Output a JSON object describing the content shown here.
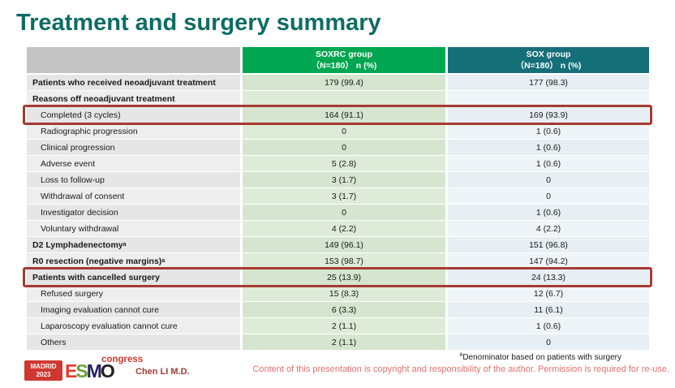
{
  "title": "Treatment and surgery summary",
  "colors": {
    "title_teal": "#0e6c63",
    "soxrc_green": "#00a651",
    "sox_teal": "#156f78",
    "highlight_red": "#a63a32",
    "logo_red": "#cf3830",
    "presenter_red": "#a53b32",
    "copyright_red": "#e2706e"
  },
  "table": {
    "columns": [
      {
        "label": "",
        "sublabel": ""
      },
      {
        "label": "SOXRC group",
        "sublabel": "（N=180） n (%)"
      },
      {
        "label": "SOX group",
        "sublabel": "（N=180） n (%)"
      }
    ],
    "rows": [
      {
        "label": "Patients who received neoadjuvant treatment",
        "bold": true,
        "indent": false,
        "soxrc": "179 (99.4)",
        "sox": "177 (98.3)",
        "highlight": false
      },
      {
        "label": "Reasons off neoadjuvant treatment",
        "bold": true,
        "indent": false,
        "soxrc": "",
        "sox": "",
        "highlight": false
      },
      {
        "label": "Completed (3 cycles)",
        "bold": false,
        "indent": true,
        "soxrc": "164 (91.1)",
        "sox": "169 (93.9)",
        "highlight": true
      },
      {
        "label": "Radiographic progression",
        "bold": false,
        "indent": true,
        "soxrc": "0",
        "sox": "1 (0.6)",
        "highlight": false
      },
      {
        "label": "Clinical progression",
        "bold": false,
        "indent": true,
        "soxrc": "0",
        "sox": "1 (0.6)",
        "highlight": false
      },
      {
        "label": "Adverse event",
        "bold": false,
        "indent": true,
        "soxrc": "5 (2.8)",
        "sox": "1 (0.6)",
        "highlight": false
      },
      {
        "label": "Loss to follow-up",
        "bold": false,
        "indent": true,
        "soxrc": "3 (1.7)",
        "sox": "0",
        "highlight": false
      },
      {
        "label": "Withdrawal of consent",
        "bold": false,
        "indent": true,
        "soxrc": "3 (1.7)",
        "sox": "0",
        "highlight": false
      },
      {
        "label": "Investigator decision",
        "bold": false,
        "indent": true,
        "soxrc": "0",
        "sox": "1 (0.6)",
        "highlight": false
      },
      {
        "label": "Voluntary withdrawal",
        "bold": false,
        "indent": true,
        "soxrc": "4 (2.2)",
        "sox": "4 (2.2)",
        "highlight": false
      },
      {
        "label": "D2 Lymphadenectomy",
        "sup": "a",
        "bold": true,
        "indent": false,
        "soxrc": "149 (96.1)",
        "sox": "151 (96.8)",
        "highlight": false
      },
      {
        "label": "R0 resection (negative margins)",
        "sup": "a",
        "bold": true,
        "indent": false,
        "soxrc": "153 (98.7)",
        "sox": "147 (94.2)",
        "highlight": false
      },
      {
        "label": "Patients with cancelled surgery",
        "bold": true,
        "indent": false,
        "soxrc": "25 (13.9)",
        "sox": "24 (13.3)",
        "highlight": true
      },
      {
        "label": "Refused surgery",
        "bold": false,
        "indent": true,
        "soxrc": "15 (8.3)",
        "sox": "12 (6.7)",
        "highlight": false
      },
      {
        "label": "Imaging evaluation cannot cure",
        "bold": false,
        "indent": true,
        "soxrc": "6 (3.3)",
        "sox": "11 (6.1)",
        "highlight": false
      },
      {
        "label": "Laparoscopy evaluation cannot cure",
        "bold": false,
        "indent": true,
        "soxrc": "2 (1.1)",
        "sox": "1 (0.6)",
        "highlight": false
      },
      {
        "label": "Others",
        "bold": false,
        "indent": true,
        "soxrc": "2 (1.1)",
        "sox": "0",
        "highlight": false
      }
    ]
  },
  "footer": {
    "madrid_line1": "MADRID",
    "madrid_line2": "2023",
    "esmo_letters": [
      {
        "ch": "E",
        "color": "#e23b2e"
      },
      {
        "ch": "S",
        "color": "#6ba43a"
      },
      {
        "ch": "M",
        "color": "#262262"
      },
      {
        "ch": "O",
        "color": "#231f20"
      }
    ],
    "congress": "congress",
    "presenter": "Chen LI M.D.",
    "footnote_sup": "a",
    "footnote": "Denominator based on patients with surgery",
    "copyright": "Content of this presentation is copyright and responsibility of the author. Permission is required for re-use."
  }
}
